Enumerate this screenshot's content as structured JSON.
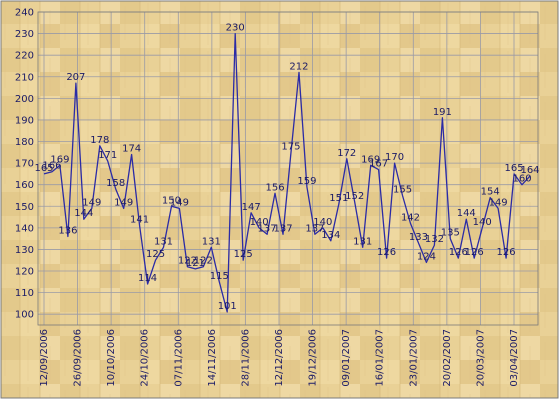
{
  "chart_data": {
    "type": "line",
    "title": "",
    "xlabel": "",
    "ylabel": "",
    "ylim": [
      95,
      240
    ],
    "yticks": [
      100,
      110,
      120,
      130,
      140,
      150,
      160,
      170,
      180,
      190,
      200,
      210,
      220,
      230,
      240
    ],
    "grid": true,
    "legend": "none",
    "x_tick_labels": [
      "12/09/2006",
      "26/09/2006",
      "10/10/2006",
      "24/10/2006",
      "07/11/2006",
      "14/11/2006",
      "28/11/2006",
      "12/12/2006",
      "19/12/2006",
      "09/01/2007",
      "16/01/2007",
      "23/01/2007",
      "20/02/2007",
      "20/03/2007",
      "03/04/2007"
    ],
    "colors": {
      "line": "#2b2ba6",
      "label": "#1a1a66",
      "grid": "#9a9aa6",
      "background": "#e8cf93",
      "frame": "#7a7a7a"
    },
    "series": [
      {
        "values": [
          165,
          166,
          169,
          136,
          207,
          144,
          149,
          178,
          171,
          158,
          149,
          174,
          141,
          114,
          125,
          131,
          150,
          149,
          122,
          121,
          122,
          131,
          115,
          101,
          230,
          125,
          147,
          140,
          137,
          156,
          137,
          175,
          212,
          159,
          137,
          140,
          134,
          151,
          172,
          152,
          131,
          169,
          167,
          126,
          170,
          155,
          142,
          133,
          124,
          132,
          191,
          135,
          126,
          144,
          126,
          140,
          154,
          149,
          126,
          165,
          160,
          164
        ]
      }
    ]
  }
}
